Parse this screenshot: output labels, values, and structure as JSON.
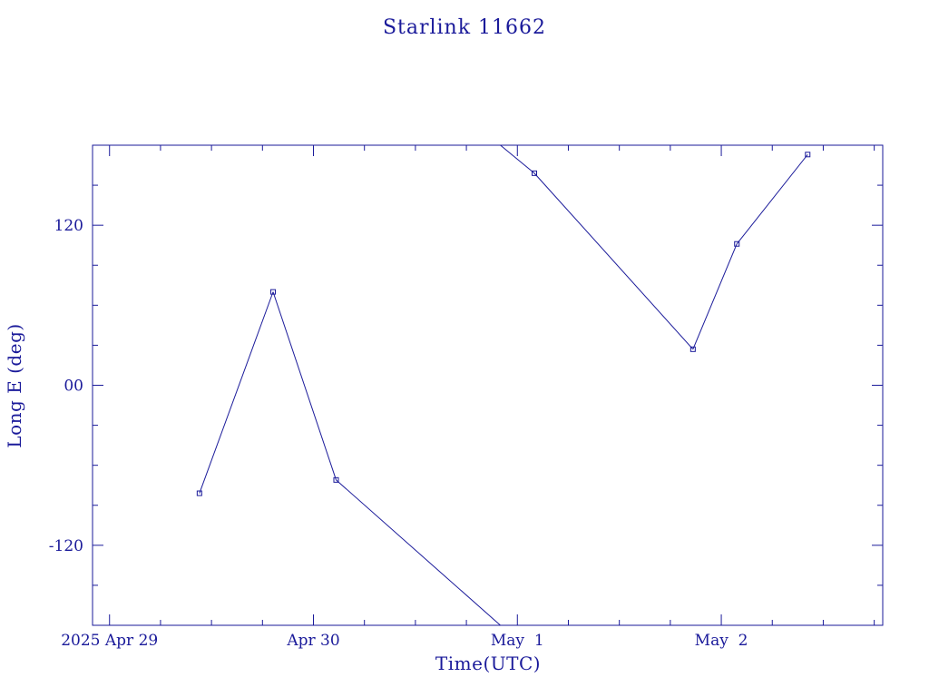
{
  "chart_data": {
    "type": "line",
    "title": "Starlink 11662",
    "xlabel": "Time(UTC)",
    "ylabel": "Long E (deg)",
    "xlim": [
      "2025-04-28T22:00",
      "2025-05-02T19:00"
    ],
    "ylim": [
      -180,
      180
    ],
    "x_ticks": [
      {
        "label": "2025 Apr 29",
        "value": "2025-04-29T00:00"
      },
      {
        "label": "Apr 30",
        "value": "2025-04-30T00:00"
      },
      {
        "label": "May  1",
        "value": "2025-05-01T00:00"
      },
      {
        "label": "May  2",
        "value": "2025-05-02T00:00"
      }
    ],
    "y_ticks": [
      {
        "label": "-120",
        "value": -120
      },
      {
        "label": "00",
        "value": 0
      },
      {
        "label": "120",
        "value": 120
      }
    ],
    "grid": false,
    "series": [
      {
        "points": [
          {
            "x": "2025-04-29T10:35",
            "y": -81
          },
          {
            "x": "2025-04-29T19:15",
            "y": 70
          },
          {
            "x": "2025-04-30T02:40",
            "y": -71
          },
          {
            "x": "2025-04-30T22:00",
            "y": -180
          },
          {
            "x": "2025-04-30T22:00",
            "y": 180
          },
          {
            "x": "2025-05-01T02:00",
            "y": 159
          },
          {
            "x": "2025-05-01T20:40",
            "y": 27
          },
          {
            "x": "2025-05-02T01:50",
            "y": 106
          },
          {
            "x": "2025-05-02T10:10",
            "y": 173
          }
        ],
        "markers": [
          0,
          1,
          2,
          5,
          6,
          7,
          8
        ]
      }
    ],
    "colors": {
      "ink": "#1a1a9a"
    }
  }
}
